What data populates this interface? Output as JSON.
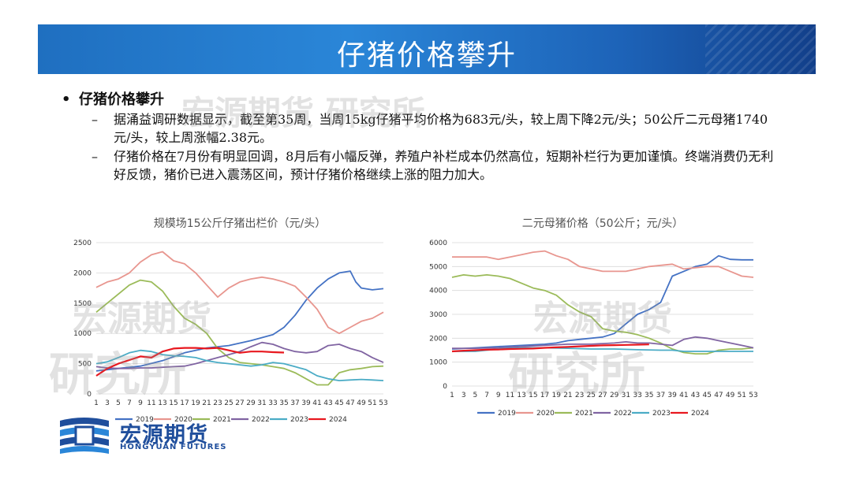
{
  "header": {
    "title": "仔猪价格攀升"
  },
  "body": {
    "bullet_main": "仔猪价格攀升",
    "bullet_dot": "•",
    "dash": "–",
    "paragraph1": "据涌益调研数据显示，截至第35周，当周15kg仔猪平均价格为683元/头，较上周下降2元/头；50公斤二元母猪1740元/头，较上周涨幅2.38元。",
    "paragraph2": "仔猪价格在7月份有明显回调，8月后有小幅反弹，养殖户补栏成本仍然高位，短期补栏行为更加谨慎。终端消费仍无利好反馈，猪价已进入震荡区间，预计仔猪价格继续上涨的阻力加大。"
  },
  "watermarks": {
    "w1": "宏源期货 研究所",
    "w2": "宏源期货",
    "w3": "研究所"
  },
  "logo": {
    "cn": "宏源期货",
    "en": "HONGYUAN FUTURES"
  },
  "colors": {
    "2019": "#4472c4",
    "2020": "#e8968f",
    "2021": "#9bbb59",
    "2022": "#8064a2",
    "2023": "#4bacc6",
    "2024": "#e8181f"
  },
  "chart_data": [
    {
      "type": "line",
      "title": "规模场15公斤仔猪出栏价（元/头）",
      "ylim": [
        0,
        2500
      ],
      "yticks": [
        0,
        500,
        1000,
        1500,
        2000,
        2500
      ],
      "xticks": [
        1,
        3,
        5,
        7,
        9,
        11,
        13,
        15,
        17,
        19,
        21,
        23,
        25,
        27,
        29,
        31,
        33,
        35,
        37,
        39,
        41,
        43,
        45,
        47,
        49,
        51,
        53
      ],
      "legend_position": "bottom",
      "grid": true,
      "series": [
        {
          "name": "2019",
          "x": [
            1,
            5,
            9,
            13,
            17,
            21,
            25,
            29,
            33,
            35,
            37,
            39,
            41,
            43,
            45,
            47,
            48,
            49,
            51,
            53
          ],
          "values": [
            380,
            420,
            460,
            550,
            680,
            760,
            800,
            880,
            980,
            1100,
            1300,
            1550,
            1750,
            1900,
            2000,
            2030,
            1850,
            1750,
            1720,
            1740
          ]
        },
        {
          "name": "2020",
          "x": [
            1,
            3,
            5,
            7,
            9,
            11,
            13,
            15,
            17,
            19,
            21,
            23,
            25,
            27,
            29,
            31,
            33,
            35,
            37,
            39,
            41,
            43,
            45,
            47,
            49,
            51,
            53
          ],
          "values": [
            1760,
            1850,
            1900,
            2000,
            2180,
            2300,
            2350,
            2200,
            2150,
            2000,
            1800,
            1600,
            1750,
            1850,
            1900,
            1930,
            1900,
            1850,
            1780,
            1600,
            1400,
            1100,
            1000,
            1100,
            1200,
            1250,
            1350
          ]
        },
        {
          "name": "2021",
          "x": [
            1,
            3,
            5,
            7,
            9,
            11,
            13,
            15,
            17,
            19,
            21,
            23,
            25,
            27,
            29,
            31,
            33,
            35,
            37,
            39,
            41,
            43,
            45,
            47,
            49,
            51,
            53
          ],
          "values": [
            1350,
            1500,
            1650,
            1800,
            1880,
            1850,
            1700,
            1450,
            1250,
            1150,
            1000,
            750,
            600,
            520,
            500,
            480,
            450,
            420,
            350,
            250,
            150,
            150,
            350,
            400,
            420,
            450,
            460
          ]
        },
        {
          "name": "2022",
          "x": [
            1,
            3,
            5,
            7,
            9,
            11,
            13,
            15,
            17,
            19,
            21,
            23,
            25,
            27,
            29,
            31,
            33,
            35,
            37,
            39,
            41,
            43,
            45,
            47,
            49,
            51,
            53
          ],
          "values": [
            450,
            430,
            420,
            420,
            430,
            430,
            440,
            450,
            460,
            500,
            550,
            600,
            650,
            700,
            780,
            850,
            820,
            750,
            700,
            680,
            700,
            800,
            820,
            750,
            700,
            600,
            520
          ]
        },
        {
          "name": "2023",
          "x": [
            1,
            3,
            5,
            7,
            9,
            11,
            13,
            15,
            17,
            19,
            21,
            23,
            25,
            27,
            29,
            31,
            33,
            35,
            37,
            39,
            41,
            43,
            45,
            47,
            49,
            51,
            53
          ],
          "values": [
            500,
            530,
            600,
            680,
            720,
            700,
            650,
            630,
            620,
            600,
            550,
            520,
            500,
            480,
            460,
            480,
            520,
            500,
            450,
            400,
            300,
            250,
            220,
            230,
            240,
            230,
            220
          ]
        },
        {
          "name": "2024",
          "x": [
            1,
            3,
            5,
            7,
            9,
            11,
            13,
            15,
            17,
            19,
            21,
            23,
            25,
            27,
            29,
            31,
            33,
            35
          ],
          "values": [
            300,
            420,
            500,
            560,
            620,
            600,
            700,
            750,
            760,
            760,
            750,
            760,
            720,
            680,
            700,
            700,
            690,
            683
          ]
        }
      ]
    },
    {
      "type": "line",
      "title": "二元母猪价格（50公斤；元/头）",
      "ylim": [
        0,
        6000
      ],
      "yticks": [
        0,
        1000,
        2000,
        3000,
        4000,
        5000,
        6000
      ],
      "xticks": [
        1,
        3,
        5,
        7,
        9,
        11,
        13,
        15,
        17,
        19,
        21,
        23,
        25,
        27,
        29,
        31,
        33,
        35,
        37,
        39,
        41,
        43,
        45,
        47,
        49,
        51,
        53
      ],
      "legend_position": "bottom",
      "grid": true,
      "series": [
        {
          "name": "2019",
          "x": [
            1,
            5,
            9,
            13,
            17,
            19,
            21,
            23,
            25,
            27,
            29,
            31,
            33,
            35,
            37,
            39,
            41,
            43,
            45,
            47,
            49,
            51,
            53
          ],
          "values": [
            1550,
            1600,
            1650,
            1700,
            1750,
            1800,
            1900,
            1950,
            2000,
            2050,
            2200,
            2600,
            3000,
            3200,
            3500,
            4600,
            4800,
            5000,
            5100,
            5450,
            5300,
            5280,
            5280
          ]
        },
        {
          "name": "2020",
          "x": [
            1,
            3,
            5,
            7,
            9,
            11,
            13,
            15,
            17,
            19,
            21,
            23,
            25,
            27,
            29,
            31,
            33,
            35,
            37,
            39,
            41,
            43,
            45,
            47,
            49,
            51,
            53
          ],
          "values": [
            5400,
            5400,
            5400,
            5400,
            5300,
            5400,
            5500,
            5600,
            5650,
            5450,
            5300,
            5000,
            4900,
            4800,
            4800,
            4800,
            4900,
            5000,
            5050,
            5100,
            4900,
            4950,
            5000,
            5000,
            4800,
            4600,
            4550
          ]
        },
        {
          "name": "2021",
          "x": [
            1,
            3,
            5,
            7,
            9,
            11,
            13,
            15,
            17,
            19,
            21,
            23,
            25,
            27,
            29,
            31,
            33,
            35,
            37,
            39,
            41,
            43,
            45,
            47,
            49,
            51,
            53
          ],
          "values": [
            4550,
            4650,
            4600,
            4650,
            4600,
            4500,
            4300,
            4100,
            4000,
            3800,
            3400,
            3100,
            2900,
            2400,
            2300,
            2250,
            2150,
            2000,
            1800,
            1550,
            1400,
            1350,
            1350,
            1500,
            1550,
            1550,
            1600
          ]
        },
        {
          "name": "2022",
          "x": [
            1,
            5,
            9,
            13,
            17,
            21,
            25,
            29,
            31,
            33,
            35,
            37,
            39,
            41,
            43,
            45,
            47,
            49,
            51,
            53
          ],
          "values": [
            1580,
            1580,
            1600,
            1650,
            1700,
            1750,
            1750,
            1800,
            1850,
            1800,
            1800,
            1750,
            1700,
            1950,
            2050,
            2000,
            1900,
            1800,
            1700,
            1600
          ]
        },
        {
          "name": "2023",
          "x": [
            1,
            5,
            9,
            13,
            17,
            21,
            25,
            29,
            33,
            37,
            39,
            41,
            45,
            49,
            53
          ],
          "values": [
            1450,
            1450,
            1550,
            1600,
            1600,
            1580,
            1550,
            1550,
            1520,
            1500,
            1500,
            1450,
            1450,
            1450,
            1450
          ]
        },
        {
          "name": "2024",
          "x": [
            1,
            3,
            5,
            7,
            9,
            11,
            13,
            15,
            17,
            19,
            21,
            23,
            25,
            27,
            29,
            31,
            33,
            35
          ],
          "values": [
            1450,
            1480,
            1500,
            1520,
            1530,
            1550,
            1560,
            1570,
            1600,
            1620,
            1640,
            1660,
            1680,
            1700,
            1710,
            1720,
            1730,
            1740
          ]
        }
      ]
    }
  ]
}
